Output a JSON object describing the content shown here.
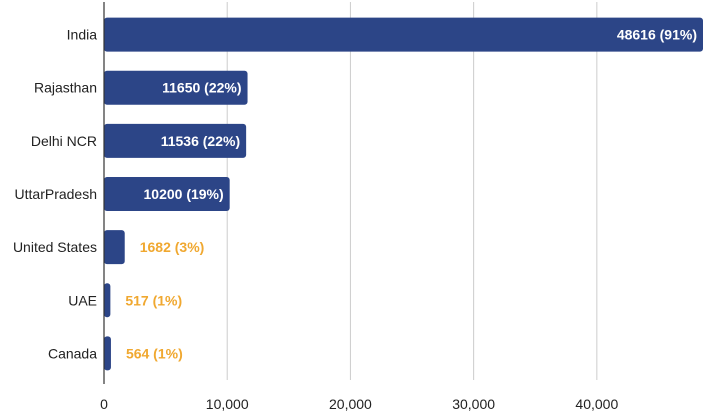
{
  "chart_data": {
    "type": "bar",
    "orientation": "horizontal",
    "categories": [
      "India",
      "Rajasthan",
      "Delhi NCR",
      "UttarPradesh",
      "United States",
      "UAE",
      "Canada"
    ],
    "values": [
      48616,
      11650,
      11536,
      10200,
      1682,
      517,
      564
    ],
    "data_labels": [
      "48616 (91%)",
      "11650 (22%)",
      "11536 (22%)",
      "10200 (19%)",
      "1682 (3%)",
      "517 (1%)",
      "564 (1%)"
    ],
    "x_ticks": [
      0,
      10000,
      20000,
      30000,
      40000
    ],
    "x_tick_labels": [
      "0",
      "10,000",
      "20,000",
      "30,000",
      "40,000"
    ],
    "xlim": [
      0,
      48616
    ],
    "title": "",
    "xlabel": "",
    "ylabel": "",
    "grid": "vertical",
    "legend": "none",
    "bar_color": "#2c4587",
    "label_inside_color": "#ffffff",
    "label_outside_color": "#f0a830",
    "grid_color": "#cccccc",
    "axis_color": "#333333"
  }
}
